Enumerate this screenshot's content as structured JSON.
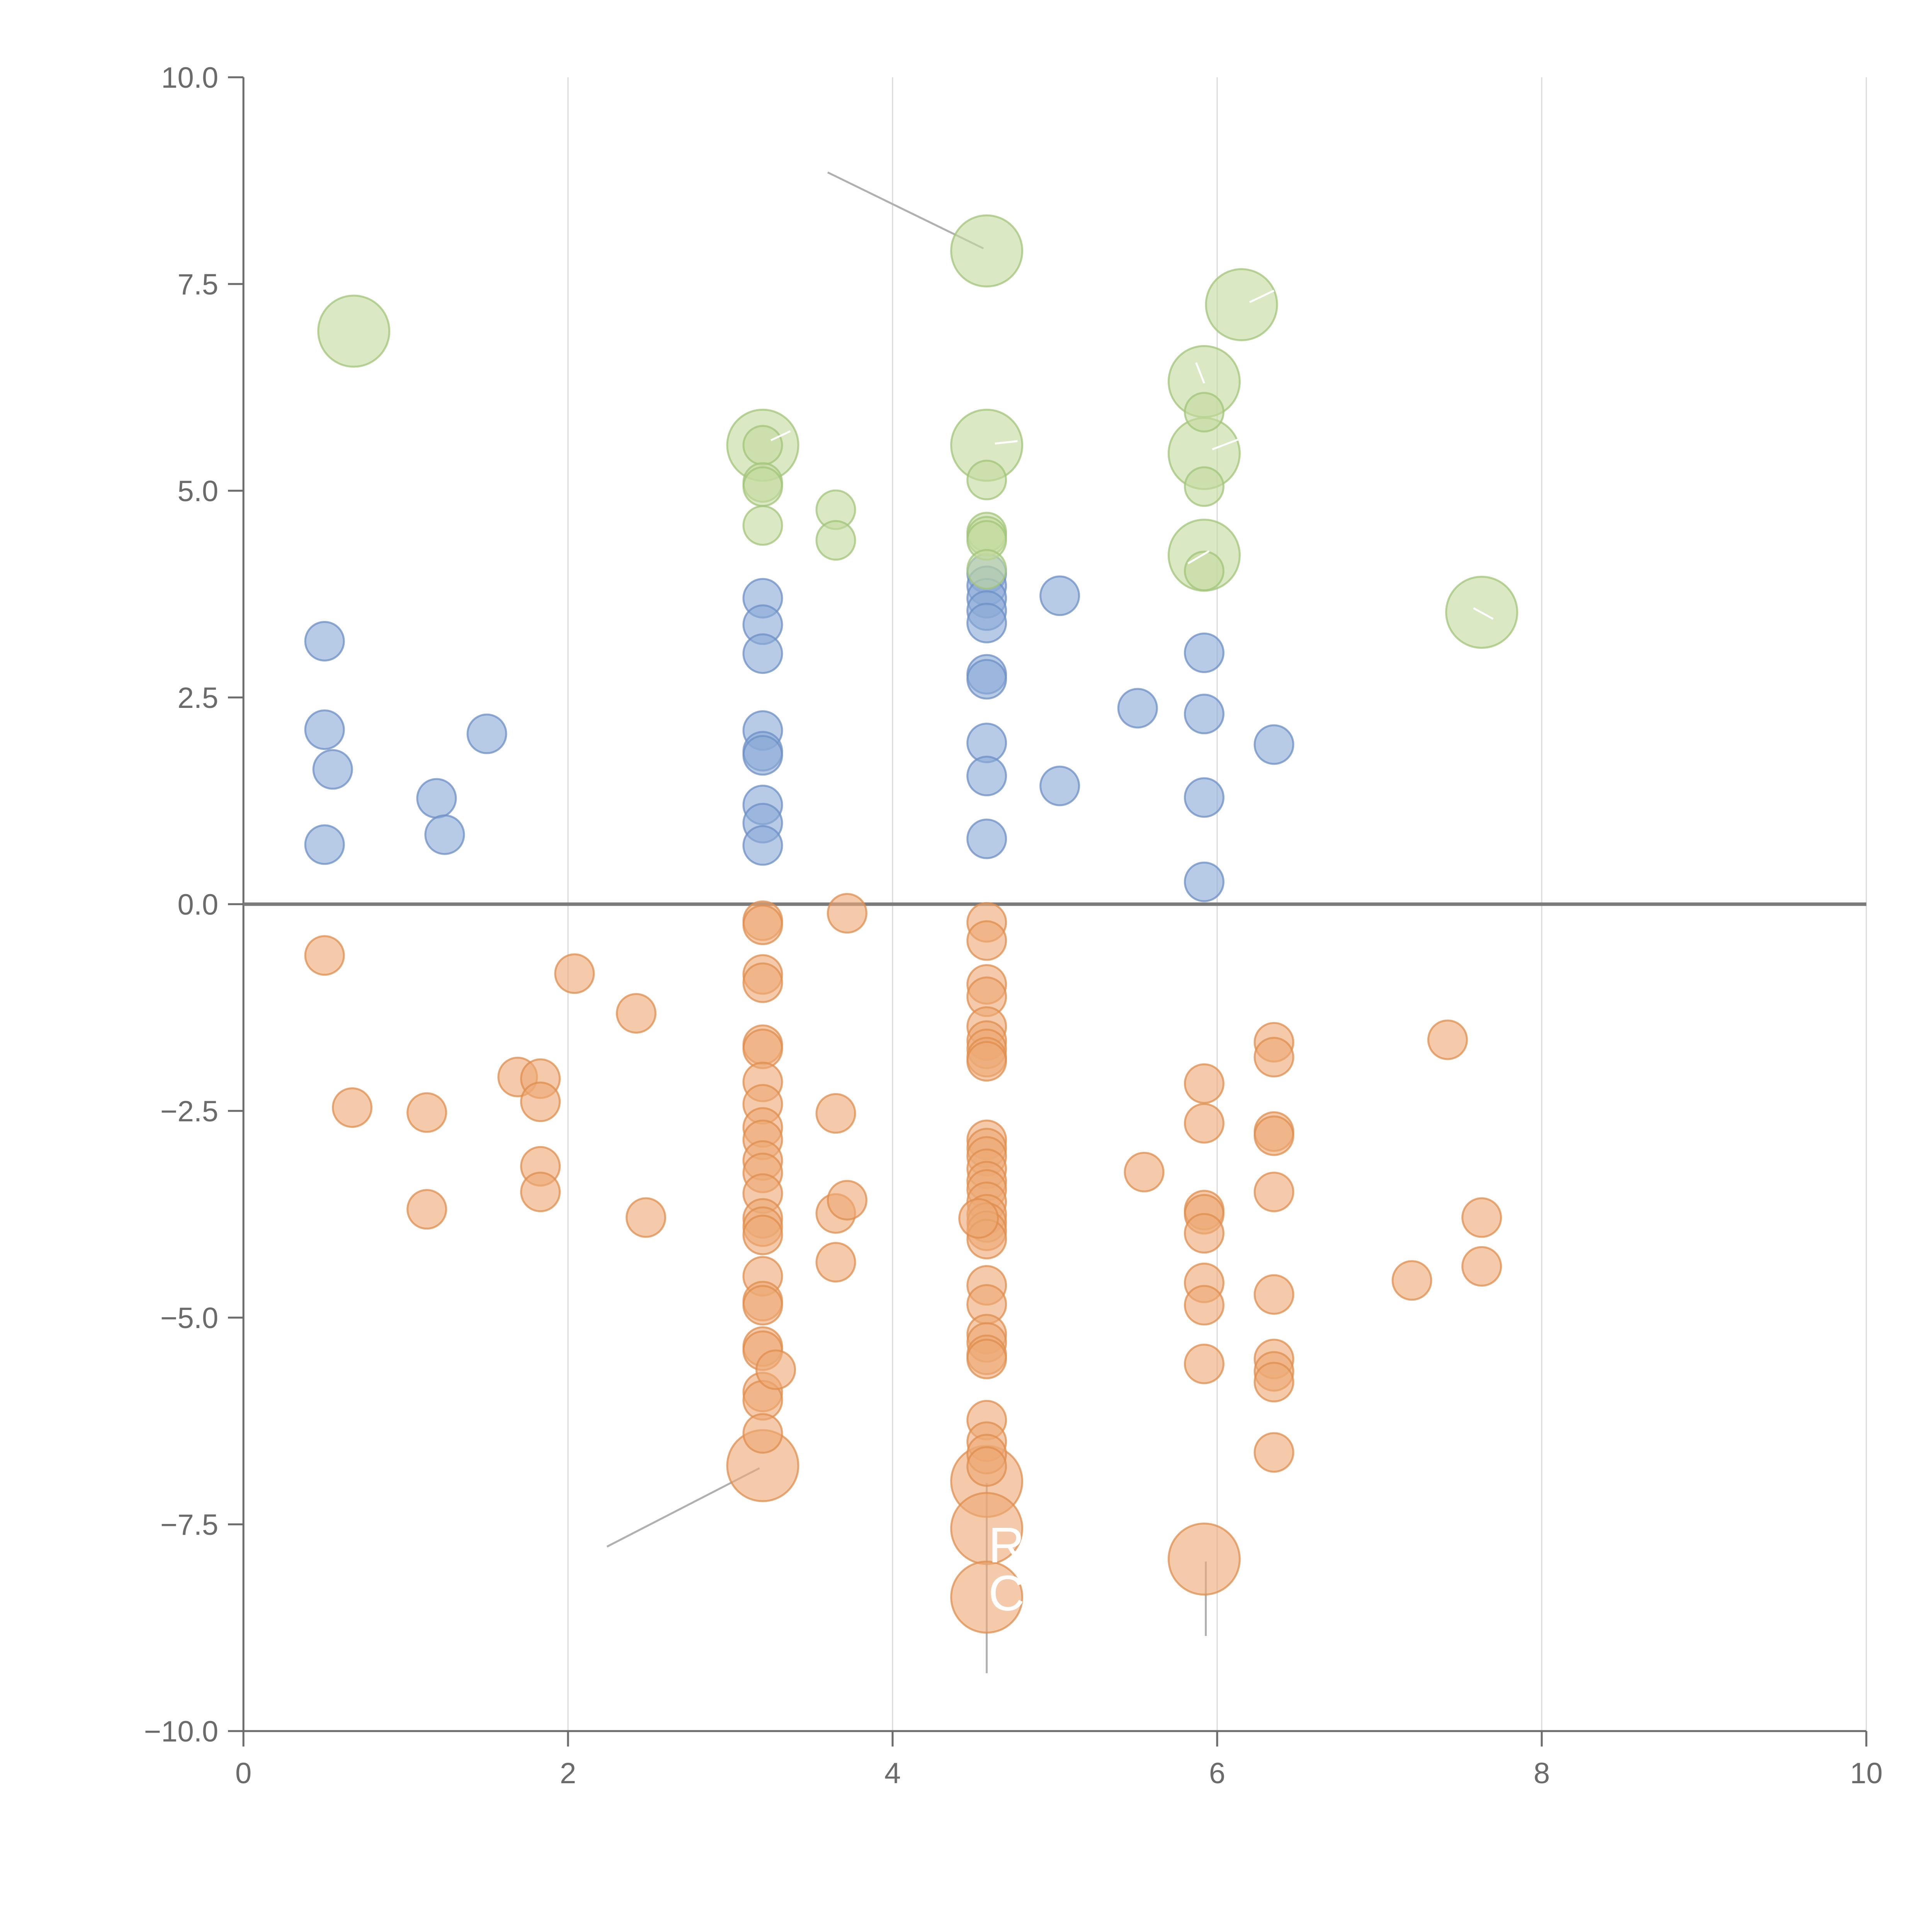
{
  "chart_data": {
    "type": "scatter",
    "title": "",
    "xlabel": "",
    "ylabel": "",
    "xlim": [
      0,
      10
    ],
    "ylim": [
      -10,
      10
    ],
    "grid": "vertical",
    "zero_line": true,
    "x_ticks": [
      0,
      2,
      4,
      6,
      8,
      10
    ],
    "x_tick_labels": [
      "0",
      "2",
      "4",
      "6",
      "8",
      "10"
    ],
    "y_ticks": [
      10,
      7.5,
      5,
      2.5,
      0,
      -2.5,
      -5,
      -7.5,
      -10
    ],
    "y_tick_labels": [
      "10.0",
      "7.5",
      "5.0",
      "2.5",
      "0.0",
      "−2.5",
      "−5.0",
      "−7.5",
      "−10.0"
    ],
    "colors": {
      "blue": "#8aaad6",
      "blue_edge": "#6c8fc4",
      "orange": "#eeaa76",
      "orange_edge": "#df8d4d",
      "green": "#c3da9e",
      "green_edge": "#a2c47a",
      "axis": "#6b6b6b",
      "grid": "#d9d9d9",
      "zero": "#7a7a7a",
      "leader": "#b0b0b0",
      "label": "#ffffff"
    },
    "series": [
      {
        "name": "blue",
        "size": "small",
        "points": [
          [
            0.5,
            3.18
          ],
          [
            0.5,
            2.11
          ],
          [
            0.55,
            1.63
          ],
          [
            0.5,
            0.72
          ],
          [
            1.19,
            1.28
          ],
          [
            1.24,
            0.84
          ],
          [
            1.5,
            2.06
          ],
          [
            3.2,
            3.7
          ],
          [
            3.2,
            3.38
          ],
          [
            3.2,
            3.03
          ],
          [
            3.2,
            2.1
          ],
          [
            3.2,
            1.85
          ],
          [
            3.2,
            1.8
          ],
          [
            3.2,
            1.2
          ],
          [
            3.2,
            0.98
          ],
          [
            3.2,
            0.71
          ],
          [
            4.58,
            4.0
          ],
          [
            4.58,
            3.85
          ],
          [
            4.58,
            3.7
          ],
          [
            4.58,
            3.55
          ],
          [
            4.58,
            3.4
          ],
          [
            4.58,
            2.78
          ],
          [
            4.58,
            2.72
          ],
          [
            4.58,
            1.95
          ],
          [
            4.58,
            1.55
          ],
          [
            4.58,
            0.79
          ],
          [
            5.03,
            3.73
          ],
          [
            5.03,
            1.43
          ],
          [
            5.51,
            2.37
          ],
          [
            5.92,
            3.04
          ],
          [
            5.92,
            2.3
          ],
          [
            5.92,
            1.29
          ],
          [
            5.92,
            0.27
          ],
          [
            6.35,
            1.93
          ]
        ]
      },
      {
        "name": "orange",
        "size": "small",
        "points": [
          [
            0.5,
            -0.62
          ],
          [
            0.67,
            -2.46
          ],
          [
            1.13,
            -2.52
          ],
          [
            1.13,
            -3.69
          ],
          [
            1.69,
            -2.09
          ],
          [
            1.83,
            -2.11
          ],
          [
            1.83,
            -2.39
          ],
          [
            1.83,
            -3.17
          ],
          [
            1.83,
            -3.48
          ],
          [
            2.04,
            -0.84
          ],
          [
            2.42,
            -1.32
          ],
          [
            2.48,
            -3.79
          ],
          [
            3.2,
            -0.2
          ],
          [
            3.2,
            -0.25
          ],
          [
            3.2,
            -0.85
          ],
          [
            3.2,
            -0.95
          ],
          [
            3.2,
            -1.7
          ],
          [
            3.2,
            -1.75
          ],
          [
            3.2,
            -2.15
          ],
          [
            3.2,
            -2.42
          ],
          [
            3.2,
            -2.7
          ],
          [
            3.2,
            -2.85
          ],
          [
            3.2,
            -3.1
          ],
          [
            3.2,
            -3.25
          ],
          [
            3.2,
            -3.5
          ],
          [
            3.2,
            -3.8
          ],
          [
            3.2,
            -3.9
          ],
          [
            3.2,
            -4.0
          ],
          [
            3.2,
            -4.5
          ],
          [
            3.2,
            -4.8
          ],
          [
            3.2,
            -4.85
          ],
          [
            3.2,
            -5.35
          ],
          [
            3.2,
            -5.4
          ],
          [
            3.2,
            -5.9
          ],
          [
            3.2,
            -6.0
          ],
          [
            3.2,
            -6.4
          ],
          [
            3.28,
            -5.63
          ],
          [
            3.65,
            -2.53
          ],
          [
            3.65,
            -3.74
          ],
          [
            3.65,
            -4.33
          ],
          [
            3.72,
            -3.58
          ],
          [
            3.72,
            -0.11
          ],
          [
            4.58,
            -0.22
          ],
          [
            4.58,
            -0.44
          ],
          [
            4.58,
            -0.97
          ],
          [
            4.58,
            -1.12
          ],
          [
            4.58,
            -1.48
          ],
          [
            4.58,
            -1.65
          ],
          [
            4.58,
            -1.75
          ],
          [
            4.58,
            -1.85
          ],
          [
            4.58,
            -1.9
          ],
          [
            4.58,
            -2.85
          ],
          [
            4.58,
            -2.95
          ],
          [
            4.58,
            -3.05
          ],
          [
            4.58,
            -3.2
          ],
          [
            4.58,
            -3.35
          ],
          [
            4.58,
            -3.45
          ],
          [
            4.58,
            -3.6
          ],
          [
            4.58,
            -3.75
          ],
          [
            4.58,
            -3.85
          ],
          [
            4.58,
            -3.95
          ],
          [
            4.58,
            -4.05
          ],
          [
            4.53,
            -3.8
          ],
          [
            4.58,
            -4.61
          ],
          [
            4.58,
            -4.84
          ],
          [
            4.58,
            -5.2
          ],
          [
            4.58,
            -5.3
          ],
          [
            4.58,
            -5.45
          ],
          [
            4.58,
            -5.5
          ],
          [
            4.58,
            -6.24
          ],
          [
            4.58,
            -6.5
          ],
          [
            4.58,
            -6.65
          ],
          [
            4.58,
            -6.8
          ],
          [
            5.55,
            -3.24
          ],
          [
            5.92,
            -2.17
          ],
          [
            5.92,
            -2.65
          ],
          [
            5.92,
            -3.7
          ],
          [
            5.92,
            -3.75
          ],
          [
            5.92,
            -3.98
          ],
          [
            5.92,
            -4.58
          ],
          [
            5.92,
            -4.85
          ],
          [
            5.92,
            -5.56
          ],
          [
            6.35,
            -1.67
          ],
          [
            6.35,
            -1.85
          ],
          [
            6.35,
            -2.75
          ],
          [
            6.35,
            -2.8
          ],
          [
            6.35,
            -3.48
          ],
          [
            6.35,
            -4.72
          ],
          [
            6.35,
            -5.5
          ],
          [
            6.35,
            -5.65
          ],
          [
            6.35,
            -5.78
          ],
          [
            6.35,
            -6.63
          ],
          [
            7.2,
            -4.55
          ],
          [
            7.42,
            -1.64
          ],
          [
            7.63,
            -3.79
          ],
          [
            7.63,
            -4.38
          ]
        ]
      },
      {
        "name": "orange-large",
        "size": "large",
        "points": [
          [
            3.2,
            -6.79
          ],
          [
            4.58,
            -6.98
          ],
          [
            4.58,
            -7.55
          ],
          [
            4.58,
            -8.38
          ],
          [
            5.92,
            -7.92
          ]
        ]
      },
      {
        "name": "green",
        "size": "small",
        "points": [
          [
            3.2,
            5.55
          ],
          [
            3.2,
            5.1
          ],
          [
            3.2,
            5.05
          ],
          [
            3.2,
            4.58
          ],
          [
            3.65,
            4.77
          ],
          [
            3.65,
            4.4
          ],
          [
            4.58,
            5.13
          ],
          [
            4.58,
            4.5
          ],
          [
            4.58,
            4.45
          ],
          [
            4.58,
            4.4
          ],
          [
            4.58,
            4.05
          ],
          [
            5.92,
            5.95
          ],
          [
            5.92,
            5.05
          ],
          [
            5.92,
            4.03
          ]
        ]
      },
      {
        "name": "green-large",
        "size": "large",
        "points": [
          [
            0.68,
            6.93
          ],
          [
            3.2,
            5.55
          ],
          [
            4.58,
            7.9
          ],
          [
            4.58,
            5.55
          ],
          [
            6.15,
            7.25
          ],
          [
            5.92,
            6.32
          ],
          [
            5.92,
            5.45
          ],
          [
            5.92,
            4.22
          ],
          [
            7.63,
            3.53
          ]
        ]
      }
    ],
    "point_labels": [
      "R",
      "C"
    ]
  }
}
